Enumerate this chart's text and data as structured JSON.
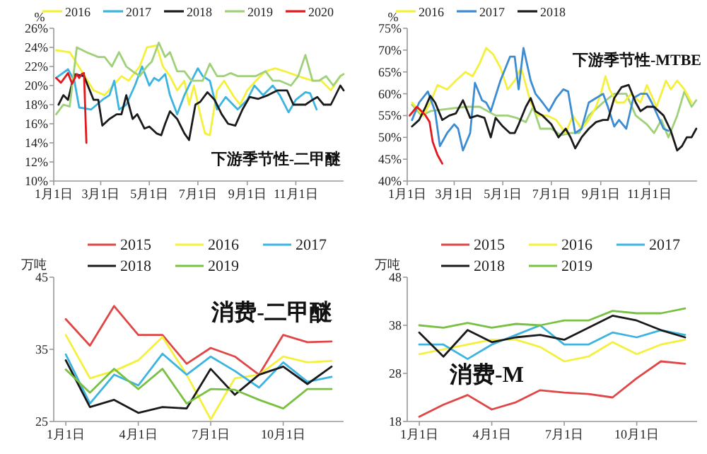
{
  "chart_data": [
    {
      "type": "line",
      "ylabel": "%",
      "legend": "top",
      "annotations": [
        "下游季节性-二甲醚"
      ],
      "xlim": [
        "--01-01",
        "--12-31"
      ],
      "xticks": [
        {
          "value": "--01-01",
          "label": "1月1日"
        },
        {
          "value": "--03-01",
          "label": "3月1日"
        },
        {
          "value": "--05-01",
          "label": "5月1日"
        },
        {
          "value": "--07-01",
          "label": "7月1日"
        },
        {
          "value": "--09-01",
          "label": "9月1日"
        },
        {
          "value": "--11-01",
          "label": "11月1日"
        }
      ],
      "ylim": [
        10,
        26
      ],
      "yticks": [
        {
          "value": 10,
          "label": "10%"
        },
        {
          "value": 12,
          "label": "12%"
        },
        {
          "value": 14,
          "label": "14%"
        },
        {
          "value": 16,
          "label": "16%"
        },
        {
          "value": 18,
          "label": "18%"
        },
        {
          "value": 20,
          "label": "20%"
        },
        {
          "value": 22,
          "label": "22%"
        },
        {
          "value": 24,
          "label": "24%"
        },
        {
          "value": 26,
          "label": "26%"
        }
      ],
      "series": [
        {
          "name": "2016",
          "color": "#f5f03c",
          "x": [
            "--01-04",
            "--01-21",
            "--02-20",
            "--03-06",
            "--03-27",
            "--04-05",
            "--04-19",
            "--04-28",
            "--05-10",
            "--05-18",
            "--05-27",
            "--06-05",
            "--06-14",
            "--06-20",
            "--06-26",
            "--07-04",
            "--07-10",
            "--07-16",
            "--07-25",
            "--08-03",
            "--08-14",
            "--08-23",
            "--09-01",
            "--09-12",
            "--09-24",
            "--10-06",
            "--10-18",
            "--11-04",
            "--11-22",
            "--12-03",
            "--12-15",
            "--12-27"
          ],
          "values": [
            23.7,
            23.5,
            19.5,
            19,
            21,
            20.5,
            22,
            24,
            24.2,
            22,
            21,
            19.5,
            20.5,
            18,
            20,
            17,
            15,
            14.8,
            19.5,
            20.5,
            19,
            18,
            19.5,
            20.5,
            21.5,
            21.8,
            21.5,
            21,
            20.5,
            20.5,
            19.5,
            21
          ]
        },
        {
          "name": "2017",
          "color": "#3cb4e0",
          "x": [
            "--01-04",
            "--01-19",
            "--01-27",
            "--02-02",
            "--02-17",
            "--03-03",
            "--03-12",
            "--03-18",
            "--03-24",
            "--04-02",
            "--04-13",
            "--04-22",
            "--05-01",
            "--05-07",
            "--05-13",
            "--05-21",
            "--05-27",
            "--06-05",
            "--06-14",
            "--06-20",
            "--07-01",
            "--07-07",
            "--07-16",
            "--07-25",
            "--08-05",
            "--08-20",
            "--09-01",
            "--09-10",
            "--09-21",
            "--10-03",
            "--10-12",
            "--10-23",
            "--11-01",
            "--11-13",
            "--11-19",
            "--11-27"
          ],
          "values": [
            20.8,
            21.7,
            20.5,
            17.7,
            17.5,
            18.5,
            19,
            20.5,
            17.5,
            18,
            20,
            22,
            20,
            20.8,
            20.5,
            21.2,
            19,
            17,
            19,
            20,
            21.8,
            21,
            20.5,
            17.5,
            18.8,
            17.5,
            18.5,
            20,
            19,
            20,
            19,
            17.2,
            18.5,
            19.3,
            19.2,
            17.5
          ]
        },
        {
          "name": "2018",
          "color": "#1a1a1a",
          "x": [
            "--01-07",
            "--01-13",
            "--01-19",
            "--01-27",
            "--02-08",
            "--02-20",
            "--02-26",
            "--03-03",
            "--03-12",
            "--03-21",
            "--03-27",
            "--04-02",
            "--04-10",
            "--04-16",
            "--04-25",
            "--05-01",
            "--05-10",
            "--05-16",
            "--05-21",
            "--05-27",
            "--06-05",
            "--06-14",
            "--06-20",
            "--06-28",
            "--07-04",
            "--07-13",
            "--07-22",
            "--07-31",
            "--08-08",
            "--08-17",
            "--08-26",
            "--09-04",
            "--09-15",
            "--09-27",
            "--10-09",
            "--10-21",
            "--10-29",
            "--11-13",
            "--11-22",
            "--11-28",
            "--12-06",
            "--12-15",
            "--12-27",
            "--12-31"
          ],
          "values": [
            18,
            19,
            18.5,
            21.2,
            21,
            18.5,
            18.5,
            15.8,
            16.5,
            17,
            17,
            19,
            16.5,
            17,
            15.5,
            15.7,
            15,
            14.8,
            16,
            17.3,
            16.5,
            15,
            14.3,
            18,
            18.3,
            19.3,
            18.5,
            17,
            16,
            15.8,
            17.5,
            18.8,
            18.6,
            19,
            19.5,
            19.5,
            18,
            18,
            18.5,
            18.8,
            18,
            18,
            20,
            19.5
          ]
        },
        {
          "name": "2019",
          "color": "#9fd07a",
          "x": [
            "--01-04",
            "--01-13",
            "--01-21",
            "--01-30",
            "--02-11",
            "--02-26",
            "--03-06",
            "--03-15",
            "--03-24",
            "--04-02",
            "--04-10",
            "--04-19",
            "--04-28",
            "--05-04",
            "--05-13",
            "--05-21",
            "--05-27",
            "--06-05",
            "--06-14",
            "--06-23",
            "--07-07",
            "--07-16",
            "--07-25",
            "--08-03",
            "--08-11",
            "--08-20",
            "--09-01",
            "--09-12",
            "--09-24",
            "--10-03",
            "--10-12",
            "--10-26",
            "--11-04",
            "--11-13",
            "--11-22",
            "--11-30",
            "--12-09",
            "--12-18",
            "--12-27",
            "--12-31"
          ],
          "values": [
            17,
            18,
            17.8,
            24,
            23.5,
            23,
            23,
            22,
            23.5,
            22,
            21.5,
            21,
            22,
            22.5,
            24.5,
            23,
            23.5,
            21.5,
            21.5,
            20.5,
            20.5,
            22.3,
            21,
            21,
            21.3,
            21,
            21,
            21,
            21.5,
            20.5,
            20.5,
            20,
            21,
            23.2,
            20.5,
            20.5,
            21,
            20,
            21,
            21.2
          ]
        },
        {
          "name": "2020",
          "color": "#e0191e",
          "x": [
            "--01-04",
            "--01-10",
            "--01-19",
            "--01-24",
            "--01-30",
            "--02-02",
            "--02-05",
            "--02-08",
            "--02-11"
          ],
          "values": [
            20.8,
            20.3,
            21.3,
            20.2,
            21.2,
            20.8,
            21.2,
            21.3,
            14
          ]
        }
      ]
    },
    {
      "type": "line",
      "ylabel": "%",
      "legend": "top",
      "annotations": [
        "下游季节性-MTBE"
      ],
      "xlim": [
        "--01-01",
        "--12-31"
      ],
      "xticks": [
        {
          "value": "--01-01",
          "label": "1月1日"
        },
        {
          "value": "--03-01",
          "label": "3月1日"
        },
        {
          "value": "--05-01",
          "label": "5月1日"
        },
        {
          "value": "--07-01",
          "label": "7月1日"
        },
        {
          "value": "--09-01",
          "label": "9月1日"
        },
        {
          "value": "--11-01",
          "label": "11月1日"
        }
      ],
      "ylim": [
        40,
        75
      ],
      "yticks": [
        {
          "value": 40,
          "label": "40%"
        },
        {
          "value": 45,
          "label": "45%"
        },
        {
          "value": 50,
          "label": "50%"
        },
        {
          "value": 55,
          "label": "55%"
        },
        {
          "value": 60,
          "label": "60%"
        },
        {
          "value": 65,
          "label": "65%"
        },
        {
          "value": 70,
          "label": "70%"
        },
        {
          "value": 75,
          "label": "75%"
        }
      ],
      "series": [
        {
          "color": "#9fd07a",
          "x": [
            "--01-07",
            "--01-19",
            "--01-30",
            "--02-20",
            "--03-15",
            "--04-02",
            "--04-22",
            "--05-07",
            "--05-18",
            "--05-30",
            "--06-08",
            "--06-17",
            "--07-01",
            "--07-13",
            "--07-25",
            "--08-05",
            "--08-17",
            "--09-04",
            "--09-18",
            "--10-03",
            "--10-15",
            "--10-29",
            "--11-07",
            "--11-16",
            "--11-25",
            "--12-06",
            "--12-15",
            "--12-24",
            "--12-30"
          ],
          "values": [
            57.5,
            55,
            56,
            56.5,
            57,
            57,
            55,
            55,
            54.5,
            53.5,
            57,
            52,
            52,
            50.5,
            51,
            51,
            55,
            58,
            60,
            60,
            55,
            53,
            51,
            54,
            50,
            55,
            60.5,
            57,
            58.5
          ]
        },
        {
          "name": "2016",
          "color": "#f5f03c",
          "x": [
            "--01-07",
            "--01-21",
            "--01-30",
            "--02-08",
            "--02-20",
            "--03-03",
            "--03-15",
            "--03-24",
            "--04-02",
            "--04-10",
            "--04-19",
            "--04-28",
            "--05-07",
            "--05-16",
            "--05-24",
            "--05-30",
            "--06-05",
            "--06-14",
            "--06-26",
            "--07-07",
            "--07-19",
            "--07-28",
            "--08-08",
            "--08-17",
            "--08-26",
            "--09-01",
            "--09-07",
            "--09-12",
            "--09-21",
            "--09-30",
            "--10-09",
            "--10-21",
            "--10-29",
            "--11-10",
            "--11-22",
            "--11-28",
            "--12-06",
            "--12-15",
            "--12-24"
          ],
          "values": [
            58,
            55,
            58,
            62,
            61,
            63,
            65,
            64,
            67,
            70.5,
            69,
            66,
            61,
            63,
            66,
            62,
            58,
            55,
            55,
            54,
            51,
            55,
            52,
            54,
            57,
            60,
            64,
            61,
            58,
            58,
            60,
            58,
            62,
            57,
            63,
            61,
            63,
            61,
            58
          ]
        },
        {
          "name": "2017",
          "color": "#3c8cd2",
          "x": [
            "--01-07",
            "--01-16",
            "--01-27",
            "--02-05",
            "--02-11",
            "--02-20",
            "--03-01",
            "--03-06",
            "--03-12",
            "--03-21",
            "--03-27",
            "--04-05",
            "--04-10",
            "--04-16",
            "--04-28",
            "--05-10",
            "--05-16",
            "--05-21",
            "--05-27",
            "--06-05",
            "--06-11",
            "--06-20",
            "--06-28",
            "--07-07",
            "--07-16",
            "--07-22",
            "--07-31",
            "--08-08",
            "--08-17",
            "--08-26",
            "--09-04",
            "--09-10",
            "--09-18",
            "--09-24",
            "--10-03",
            "--10-12",
            "--10-21",
            "--10-29",
            "--11-04",
            "--11-19",
            "--11-25"
          ],
          "values": [
            54,
            58,
            60.5,
            56,
            48,
            51,
            53,
            52,
            47,
            51,
            62.5,
            58.5,
            58,
            56,
            63,
            68.5,
            68.5,
            61,
            70.5,
            63,
            60,
            58,
            56,
            59,
            61,
            60.5,
            51,
            52,
            58,
            59,
            60,
            57,
            52.5,
            54,
            52,
            59,
            60,
            60,
            58,
            52,
            51.5
          ]
        },
        {
          "name": "2018",
          "color": "#1a1a1a",
          "x": [
            "--01-07",
            "--01-16",
            "--01-24",
            "--01-30",
            "--02-05",
            "--02-14",
            "--02-23",
            "--03-03",
            "--03-12",
            "--03-21",
            "--03-30",
            "--04-08",
            "--04-16",
            "--04-22",
            "--05-01",
            "--05-10",
            "--05-16",
            "--05-21",
            "--05-30",
            "--06-05",
            "--06-11",
            "--06-20",
            "--07-01",
            "--07-10",
            "--07-19",
            "--07-25",
            "--07-31",
            "--08-08",
            "--08-17",
            "--08-26",
            "--09-04",
            "--09-10",
            "--09-18",
            "--09-27",
            "--10-06",
            "--10-15",
            "--10-21",
            "--10-29",
            "--11-07",
            "--11-19",
            "--11-28",
            "--12-06",
            "--12-12",
            "--12-18",
            "--12-24",
            "--12-30"
          ],
          "values": [
            52.5,
            54,
            57,
            59.5,
            58,
            54,
            55,
            55.5,
            58.5,
            54.5,
            55,
            54.5,
            50,
            54.5,
            52.5,
            51,
            51,
            53,
            57,
            59,
            56,
            55,
            53,
            50,
            52,
            50,
            47.5,
            50,
            52,
            53.5,
            54,
            54,
            59,
            61.5,
            62,
            58,
            56,
            57,
            57,
            55,
            51.5,
            47,
            48,
            50,
            50,
            52
          ]
        },
        {
          "color": "#e0191e",
          "x": [
            "--01-04",
            "--01-13",
            "--01-19",
            "--01-24",
            "--01-29",
            "--02-02",
            "--02-08",
            "--02-14"
          ],
          "values": [
            55,
            57,
            56,
            55,
            53.5,
            49,
            46,
            44
          ]
        }
      ]
    },
    {
      "type": "line",
      "ylabel": "万吨",
      "legend": "top",
      "annotations": [
        "消费-二甲醚"
      ],
      "categories": [
        "1月1日",
        null,
        null,
        "4月1日",
        null,
        null,
        "7月1日",
        null,
        null,
        "10月1日",
        null,
        null
      ],
      "ylim": [
        25,
        45
      ],
      "yticks": [
        25,
        35,
        45
      ],
      "series": [
        {
          "name": "2015",
          "color": "#e04646",
          "values": [
            39.2,
            35.5,
            41,
            37,
            37,
            33,
            35.2,
            34,
            31.5,
            37,
            36,
            36.1
          ]
        },
        {
          "name": "2016",
          "color": "#f5f03c",
          "values": [
            37,
            31,
            32,
            33.5,
            36.7,
            31.5,
            25.3,
            31,
            31.5,
            34,
            33.2,
            33.4
          ]
        },
        {
          "name": "2017",
          "color": "#3cb4e0",
          "values": [
            34.3,
            27.5,
            31.5,
            30,
            34.4,
            31.5,
            34,
            32,
            29.7,
            33.2,
            30.5,
            31.2
          ]
        },
        {
          "name": "2018",
          "color": "#1a1a1a",
          "values": [
            33.5,
            27,
            28,
            26.2,
            27,
            26.8,
            32.3,
            28.7,
            31.5,
            32.6,
            30.2,
            32.6
          ]
        },
        {
          "name": "2019",
          "color": "#7ac143",
          "values": [
            32.2,
            29,
            32.3,
            29.5,
            32.3,
            27.5,
            29.5,
            29.4,
            28,
            26.8,
            29.5,
            29.5
          ]
        }
      ]
    },
    {
      "type": "line",
      "ylabel": "万吨",
      "legend": "top",
      "annotations": [
        "消费-M"
      ],
      "categories": [
        "1月1日",
        null,
        null,
        "4月1日",
        null,
        null,
        "7月1日",
        null,
        null,
        "10月1日",
        null,
        null
      ],
      "ylim": [
        18,
        48
      ],
      "yticks": [
        18,
        28,
        38,
        48
      ],
      "series": [
        {
          "name": "2015",
          "color": "#e04646",
          "values": [
            19,
            21.5,
            23.5,
            20.5,
            22,
            24.5,
            24,
            23.7,
            23,
            27,
            30.5,
            30
          ]
        },
        {
          "name": "2016",
          "color": "#f5f03c",
          "values": [
            32,
            33,
            34,
            35,
            35,
            33.5,
            30.5,
            31.5,
            34.5,
            32,
            34,
            35
          ]
        },
        {
          "name": "2017",
          "color": "#3cb4e0",
          "values": [
            34,
            34,
            31,
            34,
            36,
            38,
            34,
            34,
            36.5,
            35.5,
            37,
            36
          ]
        },
        {
          "name": "2018",
          "color": "#1a1a1a",
          "values": [
            36.5,
            31.5,
            37,
            34.5,
            35.5,
            36,
            35,
            37.5,
            40,
            39,
            37,
            35.5
          ]
        },
        {
          "name": "2019",
          "color": "#7ac143",
          "values": [
            38,
            37.5,
            38.5,
            37.5,
            38.3,
            38,
            39,
            39,
            41,
            40.5,
            40.5,
            41.5
          ]
        }
      ]
    }
  ]
}
